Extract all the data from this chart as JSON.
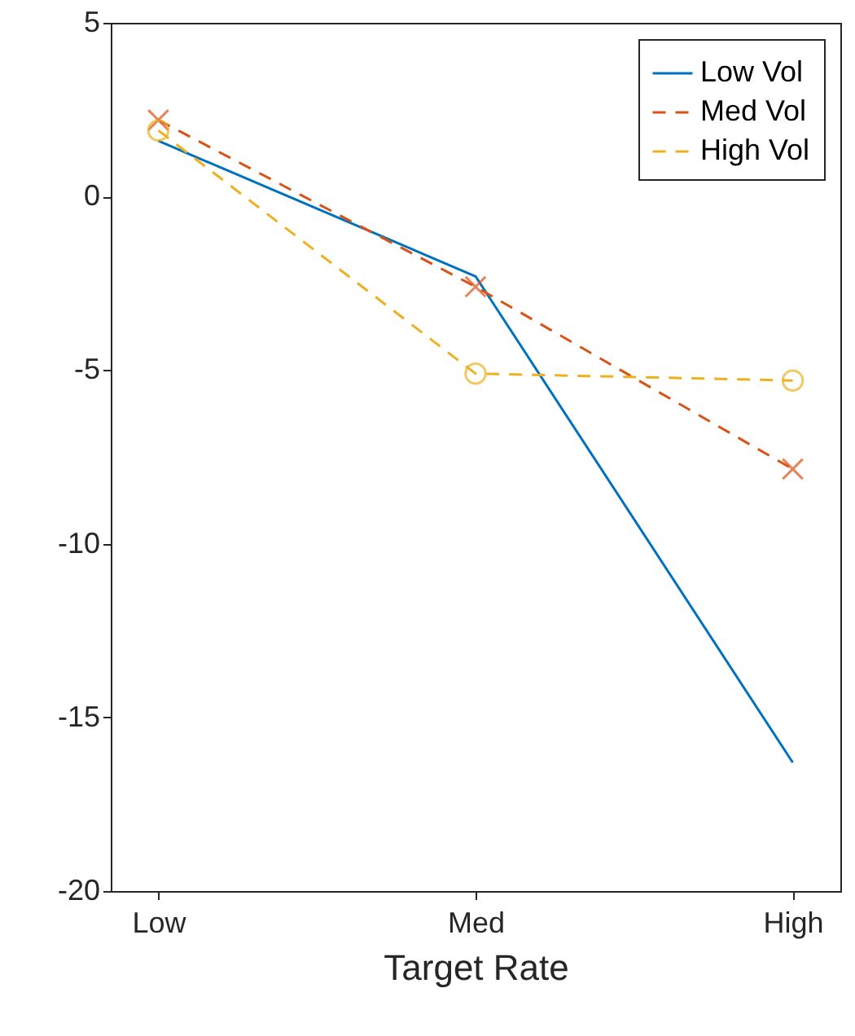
{
  "chart_data": {
    "type": "line",
    "xlabel": "Target Rate",
    "categories": [
      "Low",
      "Med",
      "High"
    ],
    "ylim": [
      -20,
      5
    ],
    "yticks": [
      -20,
      -15,
      -10,
      -5,
      0,
      5
    ],
    "grid": false,
    "legend": "top right",
    "series": [
      {
        "name": "Low Vol",
        "color": "#0072bd",
        "values": [
          1.6,
          -2.3,
          -16.3
        ],
        "marker": "none",
        "line_style": "solid"
      },
      {
        "name": "Med Vol",
        "color": "#d95319",
        "values": [
          2.2,
          -2.6,
          -7.85
        ],
        "marker": "cross",
        "line_style": "dashed"
      },
      {
        "name": "High Vol",
        "color": "#edb120",
        "values": [
          1.9,
          -5.1,
          -5.3
        ],
        "marker": "circle",
        "line_style": "dashed"
      }
    ]
  }
}
